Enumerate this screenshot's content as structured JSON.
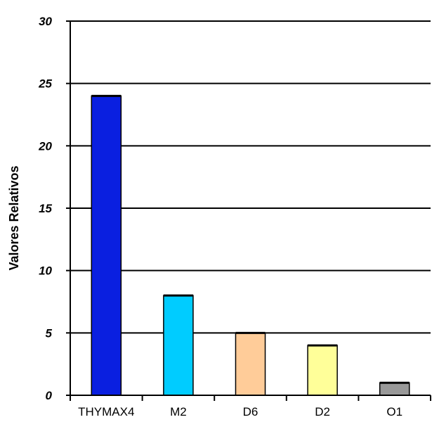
{
  "chart_data": {
    "type": "bar",
    "title": "",
    "xlabel": "",
    "ylabel": "Valores Relativos",
    "categories": [
      "THYMAX4",
      "M2",
      "D6",
      "D2",
      "O1"
    ],
    "values": [
      24,
      8,
      5,
      4,
      1
    ],
    "colors": [
      "#0a1fe0",
      "#00ccff",
      "#ffcc99",
      "#ffff99",
      "#999999"
    ],
    "ylim": [
      0,
      30
    ],
    "yticks": [
      0,
      5,
      10,
      15,
      20,
      25,
      30
    ],
    "grid": true
  }
}
